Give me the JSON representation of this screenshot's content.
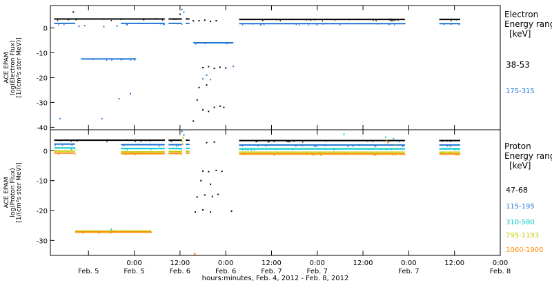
{
  "chart_data": [
    {
      "type": "scatter",
      "panel": "electron",
      "ylabel_lines": [
        "ACE EPAM",
        "log(Electron Flux)",
        "[1/(cm²s ster MeV)]"
      ],
      "ylim": [
        -41,
        9
      ],
      "yticks": [
        0,
        -10,
        -20,
        -30,
        -40
      ],
      "ytick_labels": [
        "0",
        "-10",
        "-20",
        "-30",
        "-40"
      ],
      "legend_title": [
        "Electron",
        "Energy range",
        "[keV]"
      ],
      "series": [
        {
          "name": "38-53",
          "color": "#000000",
          "segments": [
            [
              -9,
              20,
              3.6
            ],
            [
              21,
              24.5,
              3.6
            ],
            [
              25.5,
              26.5,
              3.6
            ],
            [
              39.5,
              83,
              3.4
            ],
            [
              92,
              97.5,
              3.4
            ]
          ],
          "points": [
            [
              27.5,
              2.8
            ],
            [
              29,
              2.9
            ],
            [
              30.5,
              3.1
            ],
            [
              32,
              2.6
            ],
            [
              33.5,
              2.9
            ],
            [
              -4,
              6.4
            ],
            [
              30,
              -16
            ],
            [
              31.5,
              -15.6
            ],
            [
              33,
              -16.3
            ],
            [
              34.5,
              -15.8
            ],
            [
              36,
              -16.1
            ],
            [
              29,
              -24
            ],
            [
              31,
              -23
            ],
            [
              28.5,
              -29
            ],
            [
              30,
              -33
            ],
            [
              31.5,
              -33.6
            ],
            [
              33,
              -32
            ],
            [
              34.5,
              -31.5
            ],
            [
              35.5,
              -32
            ],
            [
              27.5,
              -37.5
            ],
            [
              24,
              5.5
            ]
          ]
        },
        {
          "name": "175-315",
          "color": "#1f77d4",
          "segments": [
            [
              -9,
              -3.5,
              1.8
            ],
            [
              8.5,
              20,
              1.8
            ],
            [
              21,
              24.5,
              1.8
            ],
            [
              25.5,
              26.5,
              1.8
            ],
            [
              39.5,
              83,
              1.7
            ],
            [
              92,
              97.5,
              1.7
            ],
            [
              -2,
              12.5,
              -12.5
            ],
            [
              27.5,
              38,
              -6
            ]
          ],
          "points": [
            [
              -2.5,
              0.7
            ],
            [
              -1,
              0.9
            ],
            [
              4,
              0.5
            ],
            [
              7.5,
              0.8
            ],
            [
              24.5,
              7.4
            ],
            [
              25,
              6.3
            ],
            [
              30,
              -20.5
            ],
            [
              31,
              -19
            ],
            [
              32,
              -20.8
            ],
            [
              11,
              -26.5
            ],
            [
              8,
              -28.5
            ],
            [
              3.5,
              -36.5
            ],
            [
              -7.5,
              -36.5
            ],
            [
              38,
              -15.5
            ]
          ]
        }
      ]
    },
    {
      "type": "scatter",
      "panel": "proton",
      "ylabel_lines": [
        "ACE EPAM",
        "log(Proton Flux)",
        "[1/(cm²s ster MeV)]"
      ],
      "ylim": [
        -35,
        7
      ],
      "yticks": [
        0,
        -10,
        -20,
        -30
      ],
      "ytick_labels": [
        "0",
        "-10",
        "-20",
        "-30"
      ],
      "legend_title": [
        "Proton",
        "Energy range",
        "[keV]"
      ],
      "series": [
        {
          "name": "47-68",
          "color": "#000000",
          "segments": [
            [
              -9,
              20,
              3.5
            ],
            [
              21,
              24.5,
              3.5
            ],
            [
              25.5,
              26.5,
              3.5
            ],
            [
              39.5,
              83,
              3.4
            ],
            [
              92,
              97.5,
              3.4
            ]
          ],
          "points": [
            [
              31,
              2.7
            ],
            [
              33,
              2.9
            ],
            [
              30,
              -6.8
            ],
            [
              31.5,
              -7
            ],
            [
              33.5,
              -6.6
            ],
            [
              35,
              -6.9
            ],
            [
              29.5,
              -10
            ],
            [
              32,
              -11.2
            ],
            [
              28.5,
              -15.5
            ],
            [
              30.5,
              -14.8
            ],
            [
              32.5,
              -15.3
            ],
            [
              34,
              -14.6
            ],
            [
              28,
              -20.5
            ],
            [
              30,
              -19.8
            ],
            [
              32,
              -20.5
            ],
            [
              37.5,
              -20.2
            ]
          ]
        },
        {
          "name": "115-195",
          "color": "#1f77d4",
          "segments": [
            [
              -9,
              -3.5,
              2.2
            ],
            [
              8.5,
              20,
              2.0
            ],
            [
              21,
              24.5,
              2.0
            ],
            [
              25.5,
              26.5,
              2.1
            ],
            [
              39.5,
              83,
              1.9
            ],
            [
              92,
              97.5,
              1.9
            ]
          ],
          "points": [
            [
              24.5,
              6.5
            ],
            [
              25,
              5.3
            ]
          ]
        },
        {
          "name": "310-580",
          "color": "#00c8c8",
          "segments": [
            [
              -9,
              -3.5,
              0.9
            ],
            [
              8.5,
              20,
              0.7
            ],
            [
              21,
              24.5,
              0.7
            ],
            [
              25.5,
              26.5,
              0.8
            ],
            [
              39.5,
              83,
              0.6
            ],
            [
              92,
              97.5,
              0.6
            ]
          ],
          "points": [
            [
              67,
              5.5
            ],
            [
              78,
              4.5
            ],
            [
              80,
              4.0
            ],
            [
              81.5,
              3.0
            ],
            [
              6,
              -26.3
            ]
          ]
        },
        {
          "name": "795-1193",
          "color": "#c8c800",
          "segments": [
            [
              -9,
              -3.5,
              -0.1
            ],
            [
              8.5,
              20,
              -0.4
            ],
            [
              21,
              24.5,
              -0.3
            ],
            [
              25.5,
              26.5,
              -0.2
            ],
            [
              39.5,
              83,
              -0.5
            ],
            [
              92,
              97.5,
              -0.5
            ],
            [
              -3.5,
              16.5,
              -26.9
            ]
          ],
          "points": [
            [
              24.8,
              4.2
            ],
            [
              24.6,
              3.0
            ],
            [
              78.2,
              3.6
            ],
            [
              27.8,
              -34.3
            ]
          ]
        },
        {
          "name": "1060-1900",
          "color": "#ff8c00",
          "segments": [
            [
              -9,
              -3.5,
              -0.8
            ],
            [
              8.5,
              20,
              -1.0
            ],
            [
              21,
              24.5,
              -0.9
            ],
            [
              25.5,
              26.5,
              -0.8
            ],
            [
              39.5,
              83,
              -1.1
            ],
            [
              92,
              97.5,
              -1.1
            ],
            [
              -3.5,
              16.5,
              -27.2
            ]
          ],
          "points": [
            [
              24.7,
              2.2
            ],
            [
              78.5,
              2.7
            ],
            [
              80.5,
              2.0
            ],
            [
              27.9,
              -34.6
            ]
          ]
        }
      ]
    }
  ],
  "x_axis": {
    "range_hours": [
      -10,
      108
    ],
    "ticks_hours": [
      0,
      12,
      24,
      36,
      48,
      60,
      72,
      84,
      96,
      108
    ],
    "tick_time_labels": [
      "0:00",
      "12:00",
      "0:00",
      "12:00",
      "0:00",
      "12:00",
      "0:00",
      "12:00",
      "0:00"
    ],
    "tick_date_labels": [
      "Feb. 5",
      "Feb. 5",
      "Feb. 6",
      "Feb. 6",
      "Feb. 7",
      "Feb. 7",
      "Feb. 8"
    ],
    "title": "hours:minutes, Feb.  4, 2012 - Feb.  8, 2012"
  }
}
